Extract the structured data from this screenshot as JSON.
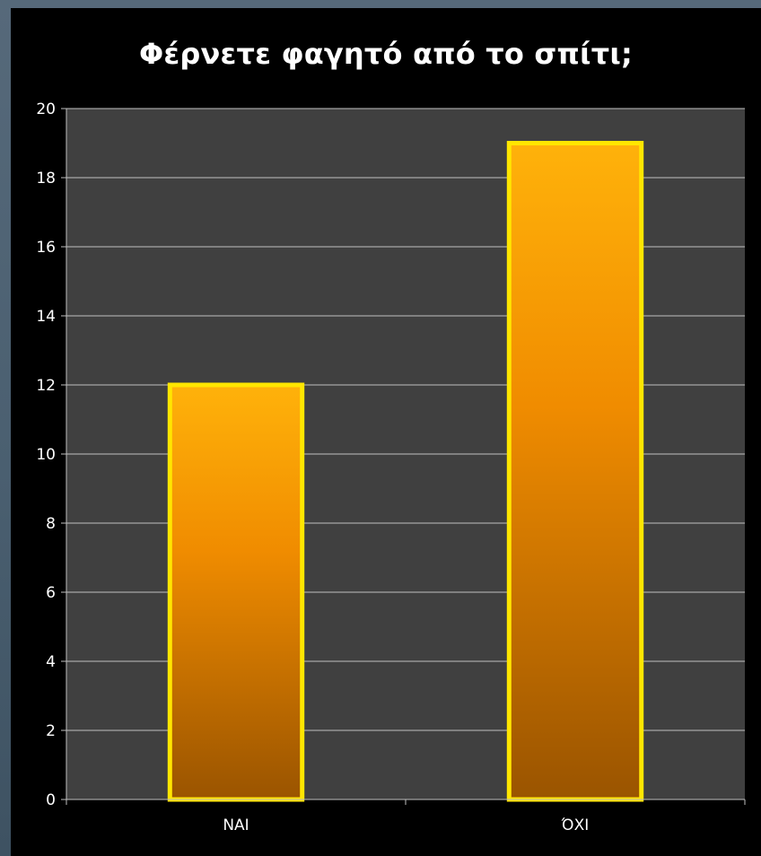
{
  "chart_data": {
    "type": "bar",
    "title": "Φέρνετε φαγητό από το σπίτι;",
    "categories": [
      "ΝΑΙ",
      "ΌΧΙ"
    ],
    "values": [
      12,
      19
    ],
    "xlabel": "",
    "ylabel": "",
    "ylim": [
      0,
      20
    ],
    "yticks": [
      "0",
      "2",
      "4",
      "6",
      "8",
      "10",
      "12",
      "14",
      "16",
      "18",
      "20"
    ],
    "grid": true,
    "legend": "none",
    "colors": {
      "plot_background": "#404040",
      "frame_background": "#000000",
      "gridline": "#bfbfbf",
      "bar_top": "#ffb20a",
      "bar_mid": "#f08c00",
      "bar_bottom": "#9a5400",
      "bar_border": "#ffe600",
      "text": "#ffffff"
    }
  }
}
